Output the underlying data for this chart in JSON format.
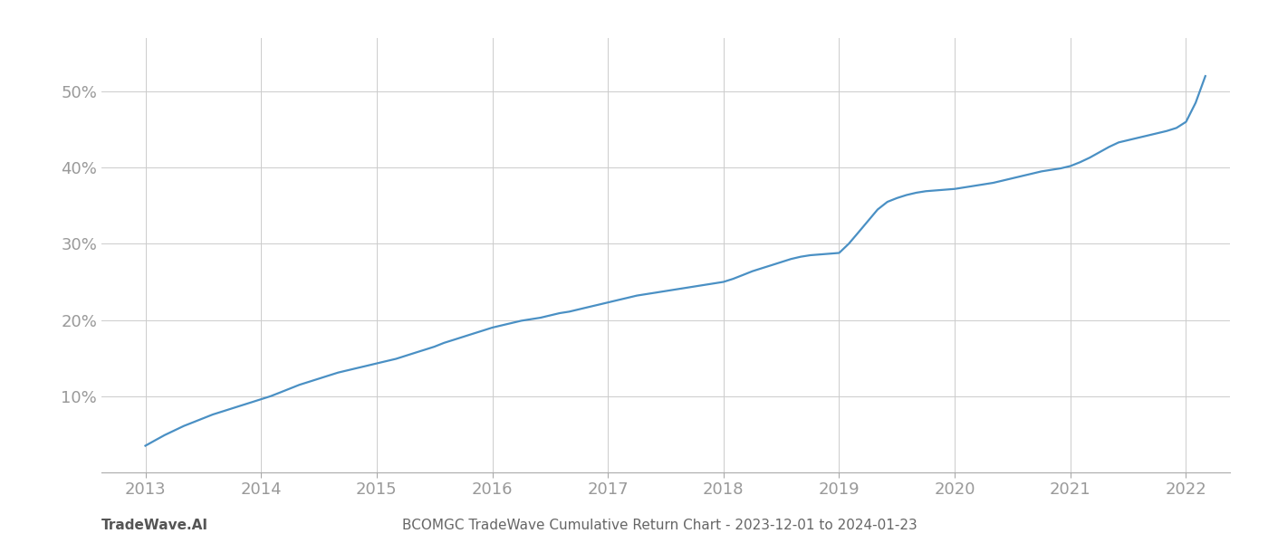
{
  "title": "BCOMGC TradeWave Cumulative Return Chart - 2023-12-01 to 2024-01-23",
  "watermark": "TradeWave.AI",
  "line_color": "#4a90c4",
  "background_color": "#ffffff",
  "grid_color": "#cccccc",
  "x_years": [
    2013,
    2014,
    2015,
    2016,
    2017,
    2018,
    2019,
    2020,
    2021,
    2022
  ],
  "x_values": [
    2013.0,
    2013.083,
    2013.167,
    2013.25,
    2013.333,
    2013.417,
    2013.5,
    2013.583,
    2013.667,
    2013.75,
    2013.833,
    2013.917,
    2014.0,
    2014.083,
    2014.167,
    2014.25,
    2014.333,
    2014.417,
    2014.5,
    2014.583,
    2014.667,
    2014.75,
    2014.833,
    2014.917,
    2015.0,
    2015.083,
    2015.167,
    2015.25,
    2015.333,
    2015.417,
    2015.5,
    2015.583,
    2015.667,
    2015.75,
    2015.833,
    2015.917,
    2016.0,
    2016.083,
    2016.167,
    2016.25,
    2016.333,
    2016.417,
    2016.5,
    2016.583,
    2016.667,
    2016.75,
    2016.833,
    2016.917,
    2017.0,
    2017.083,
    2017.167,
    2017.25,
    2017.333,
    2017.417,
    2017.5,
    2017.583,
    2017.667,
    2017.75,
    2017.833,
    2017.917,
    2018.0,
    2018.083,
    2018.167,
    2018.25,
    2018.333,
    2018.417,
    2018.5,
    2018.583,
    2018.667,
    2018.75,
    2018.833,
    2018.917,
    2019.0,
    2019.083,
    2019.167,
    2019.25,
    2019.333,
    2019.417,
    2019.5,
    2019.583,
    2019.667,
    2019.75,
    2019.833,
    2019.917,
    2020.0,
    2020.083,
    2020.167,
    2020.25,
    2020.333,
    2020.417,
    2020.5,
    2020.583,
    2020.667,
    2020.75,
    2020.833,
    2020.917,
    2021.0,
    2021.083,
    2021.167,
    2021.25,
    2021.333,
    2021.417,
    2021.5,
    2021.583,
    2021.667,
    2021.75,
    2021.833,
    2021.917,
    2022.0,
    2022.083,
    2022.167
  ],
  "y_values": [
    3.5,
    4.2,
    4.9,
    5.5,
    6.1,
    6.6,
    7.1,
    7.6,
    8.0,
    8.4,
    8.8,
    9.2,
    9.6,
    10.0,
    10.5,
    11.0,
    11.5,
    11.9,
    12.3,
    12.7,
    13.1,
    13.4,
    13.7,
    14.0,
    14.3,
    14.6,
    14.9,
    15.3,
    15.7,
    16.1,
    16.5,
    17.0,
    17.4,
    17.8,
    18.2,
    18.6,
    19.0,
    19.3,
    19.6,
    19.9,
    20.1,
    20.3,
    20.6,
    20.9,
    21.1,
    21.4,
    21.7,
    22.0,
    22.3,
    22.6,
    22.9,
    23.2,
    23.4,
    23.6,
    23.8,
    24.0,
    24.2,
    24.4,
    24.6,
    24.8,
    25.0,
    25.4,
    25.9,
    26.4,
    26.8,
    27.2,
    27.6,
    28.0,
    28.3,
    28.5,
    28.6,
    28.7,
    28.8,
    30.0,
    31.5,
    33.0,
    34.5,
    35.5,
    36.0,
    36.4,
    36.7,
    36.9,
    37.0,
    37.1,
    37.2,
    37.4,
    37.6,
    37.8,
    38.0,
    38.3,
    38.6,
    38.9,
    39.2,
    39.5,
    39.7,
    39.9,
    40.2,
    40.7,
    41.3,
    42.0,
    42.7,
    43.3,
    43.6,
    43.9,
    44.2,
    44.5,
    44.8,
    45.2,
    46.0,
    48.5,
    52.0
  ],
  "ylim": [
    0,
    57
  ],
  "yticks": [
    10,
    20,
    30,
    40,
    50
  ],
  "xlim": [
    2012.62,
    2022.38
  ],
  "tick_label_color": "#999999",
  "title_color": "#666666",
  "watermark_color": "#555555",
  "line_width": 1.6,
  "title_fontsize": 11,
  "tick_fontsize": 13,
  "watermark_fontsize": 11
}
